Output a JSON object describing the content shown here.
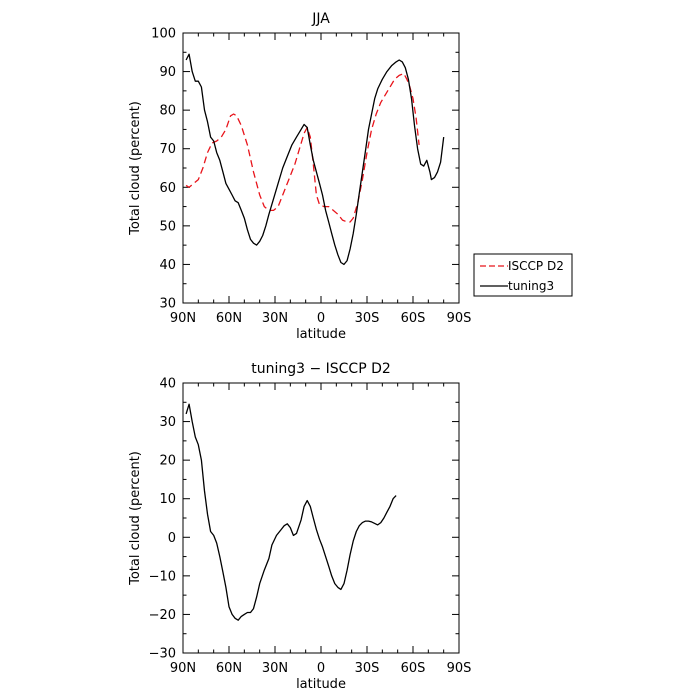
{
  "chart_data": [
    {
      "type": "line",
      "title": "JJA",
      "xlabel": "latitude",
      "ylabel": "Total cloud (percent)",
      "xlim": [
        90,
        -90
      ],
      "ylim": [
        30,
        100
      ],
      "x_ticks": [
        90,
        60,
        30,
        0,
        -30,
        -60,
        -90
      ],
      "x_tick_labels": [
        "90N",
        "60N",
        "30N",
        "0",
        "30S",
        "60S",
        "90S"
      ],
      "y_ticks": [
        30,
        40,
        50,
        60,
        70,
        80,
        90,
        100
      ],
      "y_tick_labels": [
        "30",
        "40",
        "50",
        "60",
        "70",
        "80",
        "90",
        "100"
      ],
      "legend": "right",
      "series": [
        {
          "name": "ISCCP D2",
          "color": "#e8141b",
          "dash": "dashed",
          "points": [
            [
              88,
              60.5
            ],
            [
              86,
              60
            ],
            [
              83,
              61
            ],
            [
              80,
              62
            ],
            [
              77,
              65
            ],
            [
              74,
              69
            ],
            [
              71,
              71.5
            ],
            [
              68,
              72
            ],
            [
              65,
              73
            ],
            [
              62,
              75
            ],
            [
              59,
              78.5
            ],
            [
              57,
              79
            ],
            [
              55,
              78.5
            ],
            [
              52,
              76
            ],
            [
              48,
              71
            ],
            [
              44,
              64
            ],
            [
              40,
              58
            ],
            [
              37,
              55
            ],
            [
              34,
              54
            ],
            [
              31,
              54
            ],
            [
              28,
              55
            ],
            [
              25,
              58
            ],
            [
              21,
              62
            ],
            [
              17,
              66
            ],
            [
              14,
              70
            ],
            [
              11,
              74
            ],
            [
              9,
              75.5
            ],
            [
              7,
              73
            ],
            [
              5,
              66
            ],
            [
              3,
              58
            ],
            [
              1,
              55.5
            ],
            [
              -2,
              55
            ],
            [
              -5,
              55
            ],
            [
              -8,
              54
            ],
            [
              -11,
              53
            ],
            [
              -14,
              51.5
            ],
            [
              -17,
              51
            ],
            [
              -19,
              51
            ],
            [
              -21,
              52
            ],
            [
              -24,
              56
            ],
            [
              -27,
              62
            ],
            [
              -30,
              69
            ],
            [
              -33,
              75
            ],
            [
              -36,
              79
            ],
            [
              -39,
              82
            ],
            [
              -42,
              84
            ],
            [
              -45,
              86
            ],
            [
              -48,
              88
            ],
            [
              -51,
              89
            ],
            [
              -54,
              89.5
            ],
            [
              -56,
              88
            ],
            [
              -58,
              86
            ],
            [
              -60,
              83
            ],
            [
              -62,
              78
            ],
            [
              -64,
              71
            ]
          ]
        },
        {
          "name": "tuning3",
          "color": "#000000",
          "dash": "solid",
          "points": [
            [
              88,
              93
            ],
            [
              86,
              94.5
            ],
            [
              84,
              90
            ],
            [
              82,
              87.5
            ],
            [
              80,
              87.5
            ],
            [
              78,
              86
            ],
            [
              76,
              80
            ],
            [
              74,
              77
            ],
            [
              72,
              73
            ],
            [
              70,
              72
            ],
            [
              68,
              69
            ],
            [
              66,
              67
            ],
            [
              64,
              64
            ],
            [
              62,
              61
            ],
            [
              60,
              59.5
            ],
            [
              58,
              58
            ],
            [
              56,
              56.5
            ],
            [
              54,
              56
            ],
            [
              52,
              54
            ],
            [
              50,
              52
            ],
            [
              48,
              49
            ],
            [
              46,
              46.5
            ],
            [
              44,
              45.5
            ],
            [
              42,
              45
            ],
            [
              40,
              46
            ],
            [
              38,
              47.5
            ],
            [
              36,
              50
            ],
            [
              34,
              53
            ],
            [
              31,
              57
            ],
            [
              28,
              61
            ],
            [
              25,
              65
            ],
            [
              22,
              68
            ],
            [
              19,
              71
            ],
            [
              16,
              73
            ],
            [
              13,
              75
            ],
            [
              11,
              76.3
            ],
            [
              9,
              75.5
            ],
            [
              7,
              71
            ],
            [
              5,
              67
            ],
            [
              3,
              64
            ],
            [
              1,
              61
            ],
            [
              -1,
              58
            ],
            [
              -3,
              54
            ],
            [
              -5,
              51
            ],
            [
              -7,
              48
            ],
            [
              -9,
              45
            ],
            [
              -11,
              42.5
            ],
            [
              -13,
              40.5
            ],
            [
              -15,
              40
            ],
            [
              -17,
              41
            ],
            [
              -19,
              44
            ],
            [
              -21,
              48
            ],
            [
              -23,
              53
            ],
            [
              -25,
              58.5
            ],
            [
              -27,
              64
            ],
            [
              -29,
              69.5
            ],
            [
              -31,
              75
            ],
            [
              -33,
              79
            ],
            [
              -35,
              83
            ],
            [
              -37,
              85.5
            ],
            [
              -40,
              88
            ],
            [
              -43,
              90
            ],
            [
              -46,
              91.5
            ],
            [
              -49,
              92.5
            ],
            [
              -51,
              93
            ],
            [
              -53,
              92.5
            ],
            [
              -55,
              91
            ],
            [
              -57,
              88
            ],
            [
              -59,
              83
            ],
            [
              -61,
              76
            ],
            [
              -63,
              70
            ],
            [
              -65,
              66
            ],
            [
              -67,
              65.5
            ],
            [
              -69,
              67
            ],
            [
              -71,
              64
            ],
            [
              -72,
              62
            ],
            [
              -74,
              62.5
            ],
            [
              -76,
              64
            ],
            [
              -78,
              66.5
            ],
            [
              -80,
              73
            ]
          ]
        }
      ]
    },
    {
      "type": "line",
      "title": "tuning3 − ISCCP D2",
      "xlabel": "latitude",
      "ylabel": "Total cloud (percent)",
      "xlim": [
        90,
        -90
      ],
      "ylim": [
        -30,
        40
      ],
      "x_ticks": [
        90,
        60,
        30,
        0,
        -30,
        -60,
        -90
      ],
      "x_tick_labels": [
        "90N",
        "60N",
        "30N",
        "0",
        "30S",
        "60S",
        "90S"
      ],
      "y_ticks": [
        -30,
        -20,
        -10,
        0,
        10,
        20,
        30,
        40
      ],
      "y_tick_labels": [
        "−30",
        "−20",
        "−10",
        "0",
        "10",
        "20",
        "30",
        "40"
      ],
      "series": [
        {
          "color": "#000000",
          "dash": "solid",
          "points": [
            [
              88,
              32
            ],
            [
              86,
              34.5
            ],
            [
              84,
              30
            ],
            [
              82,
              26
            ],
            [
              80,
              24
            ],
            [
              78,
              20
            ],
            [
              76,
              12
            ],
            [
              74,
              6
            ],
            [
              72,
              1.5
            ],
            [
              70,
              0.5
            ],
            [
              68,
              -1.5
            ],
            [
              66,
              -5
            ],
            [
              64,
              -9
            ],
            [
              62,
              -13
            ],
            [
              60,
              -18
            ],
            [
              58,
              -20
            ],
            [
              56,
              -21
            ],
            [
              54,
              -21.5
            ],
            [
              52,
              -20.5
            ],
            [
              50,
              -20
            ],
            [
              48,
              -19.5
            ],
            [
              46,
              -19.5
            ],
            [
              44,
              -18.5
            ],
            [
              42,
              -15.5
            ],
            [
              40,
              -12
            ],
            [
              37,
              -8.5
            ],
            [
              34,
              -5.5
            ],
            [
              32,
              -2
            ],
            [
              29,
              0.5
            ],
            [
              26,
              2
            ],
            [
              24,
              3
            ],
            [
              22,
              3.5
            ],
            [
              20,
              2.5
            ],
            [
              18,
              0.5
            ],
            [
              16,
              1
            ],
            [
              13,
              4.5
            ],
            [
              11,
              8
            ],
            [
              9,
              9.5
            ],
            [
              7,
              8
            ],
            [
              5,
              5
            ],
            [
              3,
              2
            ],
            [
              1,
              -0.5
            ],
            [
              -1,
              -2.5
            ],
            [
              -3,
              -5
            ],
            [
              -5,
              -7.5
            ],
            [
              -7,
              -10
            ],
            [
              -9,
              -12
            ],
            [
              -11,
              -13
            ],
            [
              -13,
              -13.5
            ],
            [
              -15,
              -12
            ],
            [
              -17,
              -8.5
            ],
            [
              -19,
              -4.5
            ],
            [
              -21,
              -1
            ],
            [
              -23,
              1.5
            ],
            [
              -25,
              3
            ],
            [
              -27,
              3.8
            ],
            [
              -29,
              4.2
            ],
            [
              -31,
              4.2
            ],
            [
              -33,
              4
            ],
            [
              -35,
              3.6
            ],
            [
              -37,
              3.2
            ],
            [
              -39,
              3.8
            ],
            [
              -41,
              5
            ],
            [
              -43,
              6.5
            ],
            [
              -45,
              8
            ],
            [
              -47,
              10
            ],
            [
              -49,
              10.8
            ]
          ]
        }
      ]
    }
  ]
}
